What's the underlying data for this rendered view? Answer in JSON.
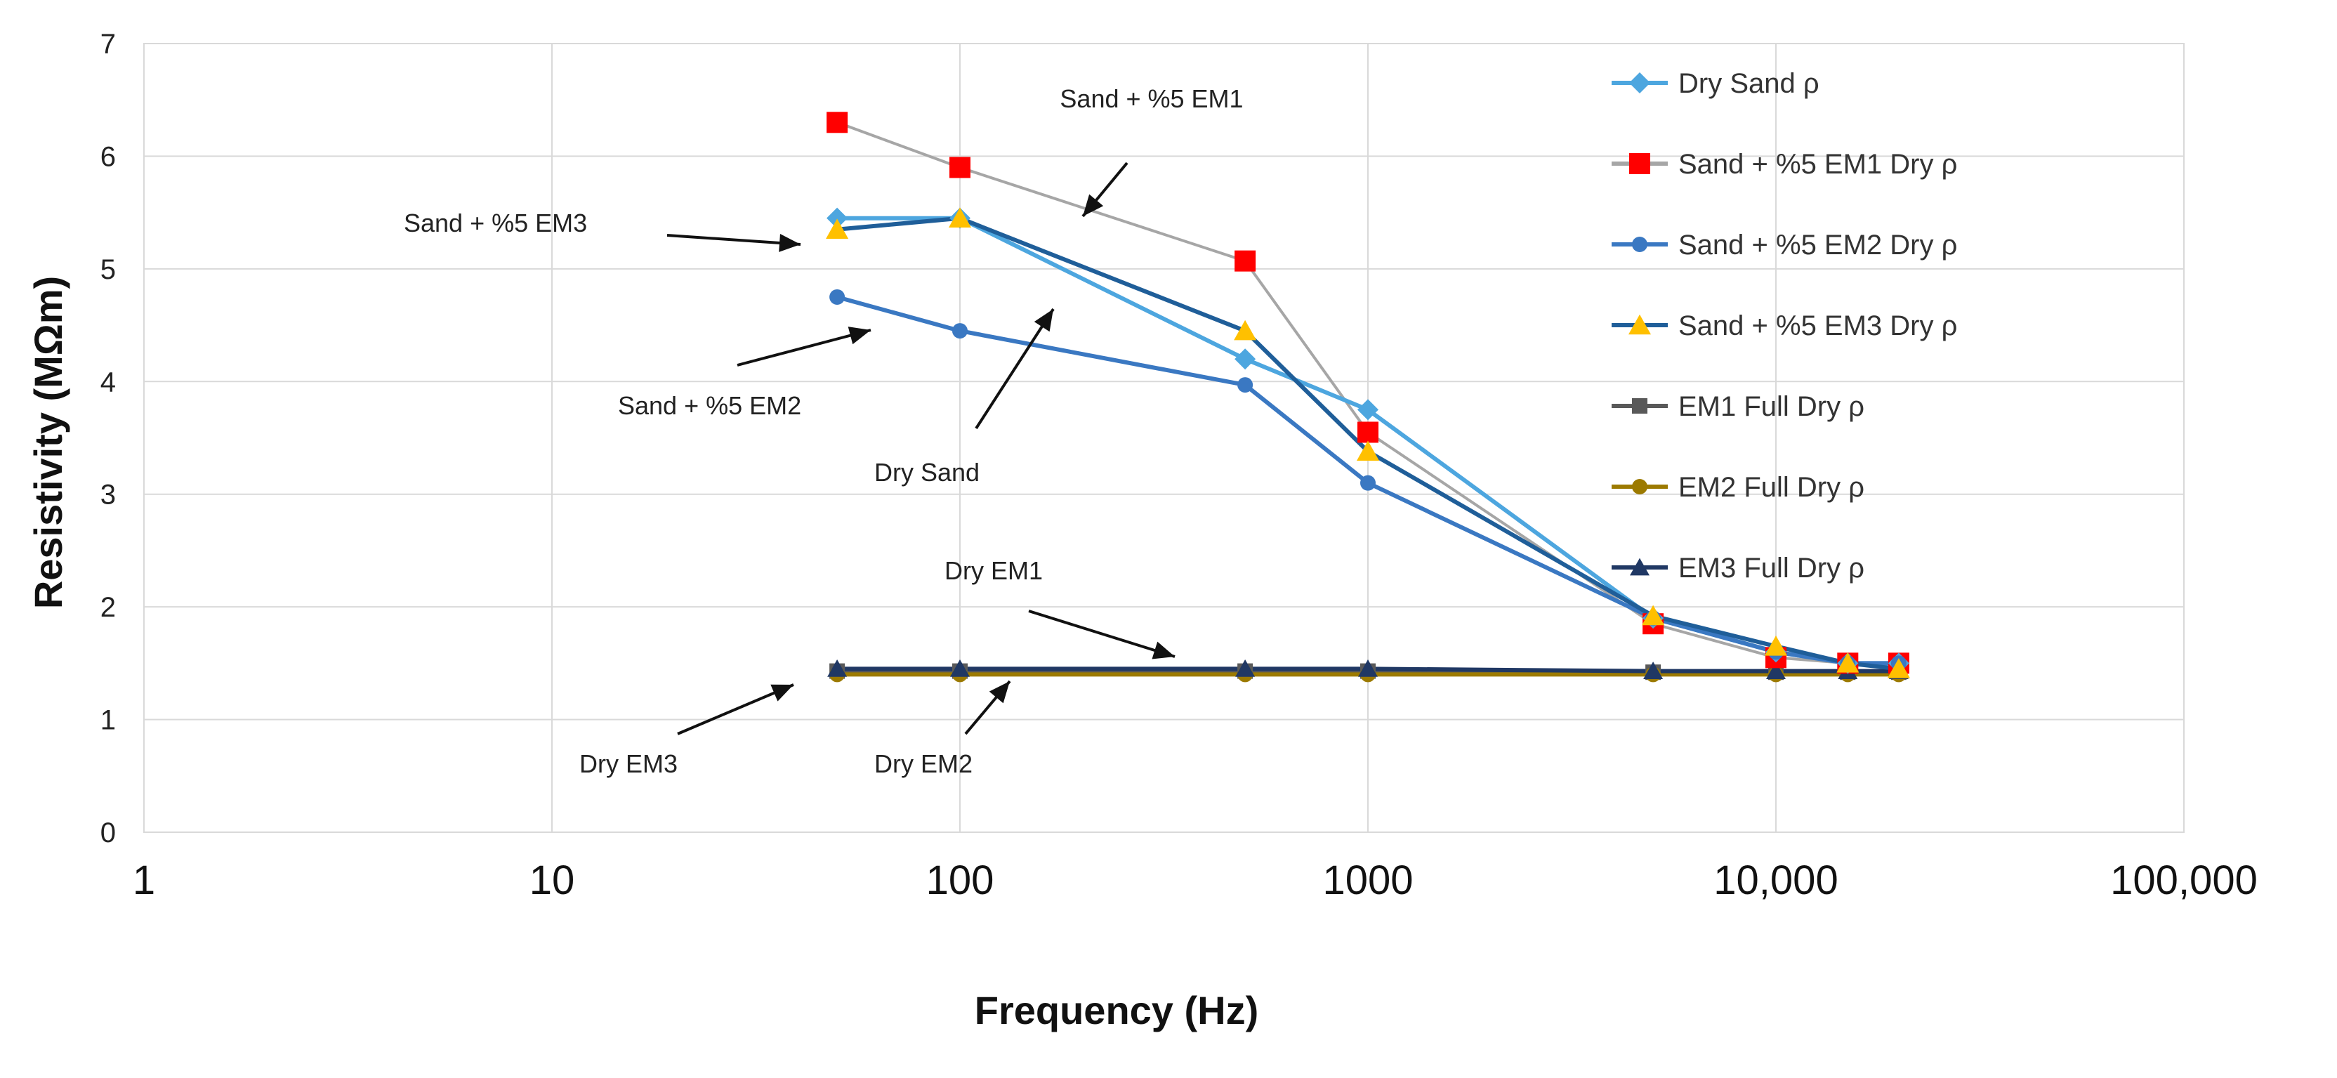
{
  "chart_data": {
    "type": "line",
    "xscale": "log",
    "xlim": [
      1,
      100000
    ],
    "ylim": [
      0,
      7
    ],
    "xlabel": "Frequency (Hz)",
    "ylabel": "Resistivity (MΩm)",
    "x_ticks": [
      {
        "value": 1,
        "label": "1"
      },
      {
        "value": 10,
        "label": "10"
      },
      {
        "value": 100,
        "label": "100"
      },
      {
        "value": 1000,
        "label": "1000"
      },
      {
        "value": 10000,
        "label": "10,000"
      },
      {
        "value": 100000,
        "label": "100,000"
      }
    ],
    "y_ticks": [
      0,
      1,
      2,
      3,
      4,
      5,
      6,
      7
    ],
    "grid": true,
    "legend_position": "right",
    "series": [
      {
        "id": "dry-sand",
        "name": "Dry Sand  ρ",
        "color": "#4da6df",
        "marker": "diamond",
        "x": [
          50,
          100,
          500,
          1000,
          5000,
          10000,
          15000,
          20000
        ],
        "y": [
          5.45,
          5.45,
          4.2,
          3.75,
          1.9,
          1.6,
          1.5,
          1.5
        ]
      },
      {
        "id": "em1-dry",
        "name": "Sand + %5 EM1 Dry  ρ",
        "color": "#a6a6a6",
        "marker": "square",
        "marker_color": "#ff0000",
        "x": [
          50,
          100,
          500,
          1000,
          5000,
          10000,
          15000,
          20000
        ],
        "y": [
          6.3,
          5.9,
          5.07,
          3.55,
          1.85,
          1.55,
          1.5,
          1.5
        ]
      },
      {
        "id": "em2-dry",
        "name": "Sand + %5 EM2 Dry  ρ",
        "color": "#3a78c2",
        "marker": "circle",
        "x": [
          50,
          100,
          500,
          1000,
          5000,
          10000,
          15000,
          20000
        ],
        "y": [
          4.75,
          4.45,
          3.97,
          3.1,
          1.9,
          1.6,
          1.5,
          1.5
        ]
      },
      {
        "id": "em3-dry",
        "name": "Sand + %5 EM3 Dry  ρ",
        "color": "#1f5e99",
        "marker": "triangle",
        "marker_color": "#ffc000",
        "x": [
          50,
          100,
          500,
          1000,
          5000,
          10000,
          15000,
          20000
        ],
        "y": [
          5.35,
          5.45,
          4.45,
          3.38,
          1.92,
          1.65,
          1.5,
          1.45
        ]
      },
      {
        "id": "em1-full",
        "name": "EM1 Full Dry ρ",
        "color": "#595959",
        "marker": "square",
        "x": [
          50,
          100,
          500,
          1000,
          5000,
          10000,
          15000,
          20000
        ],
        "y": [
          1.43,
          1.43,
          1.43,
          1.43,
          1.42,
          1.42,
          1.42,
          1.42
        ]
      },
      {
        "id": "em2-full",
        "name": "EM2 Full Dry ρ",
        "color": "#9c7a00",
        "marker": "circle",
        "x": [
          50,
          100,
          500,
          1000,
          5000,
          10000,
          15000,
          20000
        ],
        "y": [
          1.4,
          1.4,
          1.4,
          1.4,
          1.4,
          1.4,
          1.4,
          1.4
        ]
      },
      {
        "id": "em3-full",
        "name": "EM3 Full Dry ρ",
        "color": "#203864",
        "marker": "triangle",
        "x": [
          50,
          100,
          500,
          1000,
          5000,
          10000,
          15000,
          20000
        ],
        "y": [
          1.45,
          1.45,
          1.45,
          1.45,
          1.43,
          1.43,
          1.43,
          1.43
        ]
      }
    ],
    "annotations": [
      {
        "text": "Sand + %5 EM1"
      },
      {
        "text": "Sand + %5 EM3"
      },
      {
        "text": "Sand + %5 EM2"
      },
      {
        "text": "Dry Sand"
      },
      {
        "text": "Dry EM1"
      },
      {
        "text": "Dry EM3"
      },
      {
        "text": "Dry EM2"
      }
    ]
  }
}
